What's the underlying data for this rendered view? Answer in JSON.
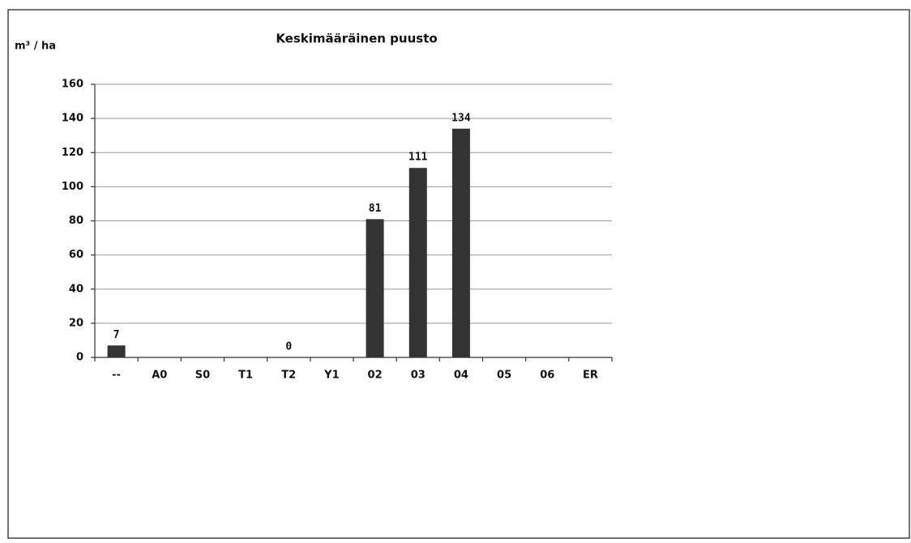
{
  "chart_data": {
    "type": "bar",
    "title": "Keskimääräinen puusto",
    "y_axis_label": "m³ / ha",
    "categories": [
      "--",
      "A0",
      "S0",
      "T1",
      "T2",
      "Y1",
      "02",
      "03",
      "04",
      "05",
      "06",
      "ER"
    ],
    "values": [
      7,
      null,
      null,
      null,
      0,
      null,
      81,
      111,
      134,
      null,
      null,
      null
    ],
    "color": "#333333",
    "ylim": [
      0,
      160
    ],
    "yticks": [
      0,
      20,
      40,
      60,
      80,
      100,
      120,
      140,
      160
    ],
    "grid": true
  }
}
